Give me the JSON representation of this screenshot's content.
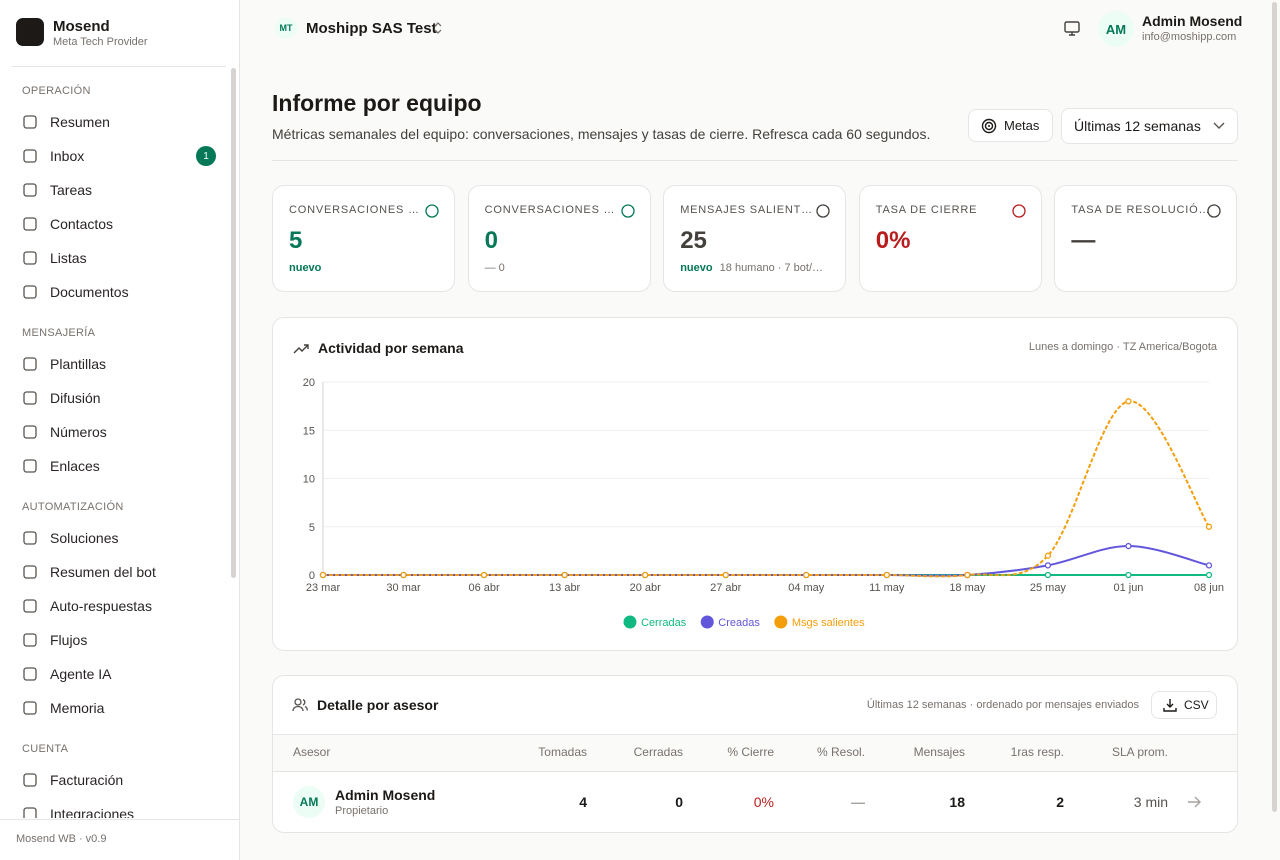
{
  "sidebar": {
    "brand": {
      "name": "Mosend",
      "subtitle": "Meta Tech Provider"
    },
    "sections": [
      {
        "title": "OPERACIÓN",
        "items": [
          {
            "label": "Resumen"
          },
          {
            "label": "Inbox",
            "badge": "1"
          },
          {
            "label": "Tareas"
          },
          {
            "label": "Contactos"
          },
          {
            "label": "Listas"
          },
          {
            "label": "Documentos"
          }
        ]
      },
      {
        "title": "MENSAJERÍA",
        "items": [
          {
            "label": "Plantillas"
          },
          {
            "label": "Difusión"
          },
          {
            "label": "Números"
          },
          {
            "label": "Enlaces"
          }
        ]
      },
      {
        "title": "AUTOMATIZACIÓN",
        "items": [
          {
            "label": "Soluciones"
          },
          {
            "label": "Resumen del bot"
          },
          {
            "label": "Auto-respuestas"
          },
          {
            "label": "Flujos"
          },
          {
            "label": "Agente IA"
          },
          {
            "label": "Memoria"
          }
        ]
      },
      {
        "title": "CUENTA",
        "items": [
          {
            "label": "Facturación"
          },
          {
            "label": "Integraciones"
          }
        ]
      }
    ],
    "footer": "Mosend WB · v0.9"
  },
  "topbar": {
    "org_initials": "MT",
    "org_name": "Moshipp SAS Test",
    "user_initials": "AM",
    "user_name": "Admin Mosend",
    "user_email": "info@moshipp.com"
  },
  "header": {
    "title": "Informe por equipo",
    "description": "Métricas semanales del equipo: conversaciones, mensajes y tasas de cierre. Refresca cada 60 segundos.",
    "goals_button": "Metas",
    "range_select": "Últimas 12 semanas"
  },
  "kpis": [
    {
      "label": "CONVERSACIONES …",
      "value": "5",
      "delta": "nuevo"
    },
    {
      "label": "CONVERSACIONES …",
      "value": "0",
      "delta": "— 0"
    },
    {
      "label": "MENSAJES SALIENT…",
      "value": "25",
      "delta": "nuevo",
      "detail": "18 humano · 7 bot/…"
    },
    {
      "label": "TASA DE CIERRE",
      "value": "0%"
    },
    {
      "label": "TASA DE RESOLUCIÓ…",
      "value": "—"
    }
  ],
  "chart_data": {
    "type": "line",
    "title": "Actividad por semana",
    "subtitle": "Lunes a domingo · TZ America/Bogota",
    "categories": [
      "23 mar",
      "30 mar",
      "06 abr",
      "13 abr",
      "20 abr",
      "27 abr",
      "04 may",
      "11 may",
      "18 may",
      "25 may",
      "01 jun",
      "08 jun"
    ],
    "series": [
      {
        "name": "Cerradas",
        "color": "#10b981",
        "values": [
          0,
          0,
          0,
          0,
          0,
          0,
          0,
          0,
          0,
          0,
          0,
          0
        ]
      },
      {
        "name": "Creadas",
        "color": "#6257db",
        "values": [
          0,
          0,
          0,
          0,
          0,
          0,
          0,
          0,
          0,
          1,
          3,
          1
        ]
      },
      {
        "name": "Msgs salientes",
        "color": "#f59e0b",
        "dashed": true,
        "values": [
          0,
          0,
          0,
          0,
          0,
          0,
          0,
          0,
          0,
          2,
          18,
          5
        ]
      }
    ],
    "ylim": [
      0,
      20
    ],
    "yticks": [
      0,
      5,
      10,
      15,
      20
    ],
    "grid": true,
    "legend": "bottom"
  },
  "table": {
    "title": "Detalle por asesor",
    "note": "Últimas 12 semanas · ordenado por mensajes enviados",
    "export_button": "CSV",
    "columns": [
      "Asesor",
      "Tomadas",
      "Cerradas",
      "% Cierre",
      "% Resol.",
      "Mensajes",
      "1ras resp.",
      "SLA prom."
    ],
    "rows": [
      {
        "initials": "AM",
        "name": "Admin Mosend",
        "role": "Propietario",
        "cells": [
          "4",
          "0",
          "0%",
          "—",
          "18",
          "2",
          "3 min"
        ]
      }
    ]
  }
}
